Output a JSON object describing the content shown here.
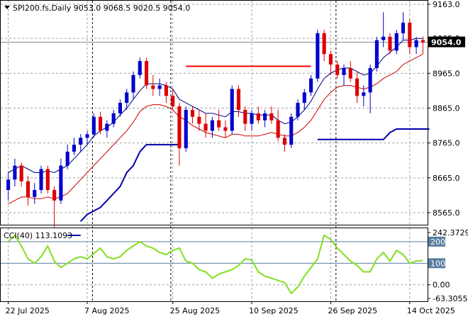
{
  "main_title": "SPI200.fs,Daily  9053.0 9068.5 9020.5 9054.0",
  "current_price_label": "9054.0",
  "cci_title": "CCI(40) 113.1093",
  "colors": {
    "up": "#0000cc",
    "down": "#dd0000",
    "ema_fast": "#000080",
    "ema_slow": "#cc0000",
    "support": "#0000aa",
    "resistance": "#ff0000",
    "cci": "#80e020",
    "grid": "#a0a0a0",
    "badge_bg": "#000000",
    "badge_text": "#ffffff"
  },
  "chart_data": [
    {
      "type": "candlestick",
      "title": "SPI200.fs,Daily  9053.0 9068.5 9020.5 9054.0",
      "ylim": [
        8500,
        9163
      ],
      "y_ticks": [
        "9163.0",
        "9065.0",
        "8965.0",
        "8865.0",
        "8765.0",
        "8665.0",
        "8565.0"
      ],
      "x_ticks": [
        "22 Jul 2025",
        "7 Aug 2025",
        "25 Aug 2025",
        "10 Sep 2025",
        "26 Sep 2025",
        "14 Oct 2025"
      ],
      "x_tick_index": [
        0,
        12,
        25,
        37,
        49,
        61
      ],
      "current_price": 9054.0,
      "candles": [
        [
          8630,
          8680,
          8600,
          8660
        ],
        [
          8660,
          8720,
          8640,
          8700
        ],
        [
          8700,
          8710,
          8640,
          8655
        ],
        [
          8655,
          8670,
          8585,
          8610
        ],
        [
          8610,
          8650,
          8590,
          8630
        ],
        [
          8630,
          8700,
          8620,
          8690
        ],
        [
          8690,
          8700,
          8620,
          8630
        ],
        [
          8630,
          8640,
          8520,
          8600
        ],
        [
          8600,
          8720,
          8590,
          8700
        ],
        [
          8700,
          8760,
          8690,
          8740
        ],
        [
          8740,
          8780,
          8730,
          8760
        ],
        [
          8760,
          8790,
          8740,
          8780
        ],
        [
          8780,
          8800,
          8760,
          8790
        ],
        [
          8790,
          8850,
          8780,
          8840
        ],
        [
          8840,
          8855,
          8790,
          8800
        ],
        [
          8800,
          8830,
          8780,
          8820
        ],
        [
          8820,
          8860,
          8810,
          8850
        ],
        [
          8850,
          8890,
          8840,
          8880
        ],
        [
          8880,
          8920,
          8860,
          8910
        ],
        [
          8910,
          8970,
          8890,
          8960
        ],
        [
          8960,
          9010,
          8950,
          9000
        ],
        [
          9000,
          9010,
          8920,
          8930
        ],
        [
          8930,
          8960,
          8900,
          8920
        ],
        [
          8920,
          8950,
          8900,
          8930
        ],
        [
          8930,
          8940,
          8880,
          8900
        ],
        [
          8900,
          8920,
          8860,
          8870
        ],
        [
          8870,
          8880,
          8700,
          8750
        ],
        [
          8750,
          8870,
          8740,
          8860
        ],
        [
          8860,
          8870,
          8820,
          8840
        ],
        [
          8840,
          8860,
          8800,
          8820
        ],
        [
          8820,
          8850,
          8780,
          8800
        ],
        [
          8800,
          8840,
          8780,
          8830
        ],
        [
          8830,
          8860,
          8800,
          8810
        ],
        [
          8810,
          8830,
          8780,
          8800
        ],
        [
          8800,
          8930,
          8790,
          8920
        ],
        [
          8920,
          8930,
          8840,
          8860
        ],
        [
          8860,
          8870,
          8800,
          8820
        ],
        [
          8820,
          8860,
          8800,
          8850
        ],
        [
          8850,
          8870,
          8820,
          8830
        ],
        [
          8830,
          8860,
          8810,
          8850
        ],
        [
          8850,
          8870,
          8820,
          8830
        ],
        [
          8830,
          8860,
          8770,
          8780
        ],
        [
          8780,
          8790,
          8740,
          8760
        ],
        [
          8760,
          8850,
          8750,
          8840
        ],
        [
          8840,
          8890,
          8830,
          8880
        ],
        [
          8880,
          8920,
          8860,
          8910
        ],
        [
          8910,
          8960,
          8900,
          8950
        ],
        [
          8950,
          9090,
          8940,
          9080
        ],
        [
          9080,
          9090,
          9000,
          9020
        ],
        [
          9020,
          9030,
          8960,
          8990
        ],
        [
          8990,
          9000,
          8950,
          8960
        ],
        [
          8960,
          8990,
          8930,
          8980
        ],
        [
          8980,
          9000,
          8940,
          8950
        ],
        [
          8950,
          8970,
          8880,
          8900
        ],
        [
          8900,
          8930,
          8870,
          8910
        ],
        [
          8910,
          8990,
          8850,
          8980
        ],
        [
          8980,
          9070,
          8970,
          9060
        ],
        [
          9060,
          9140,
          9040,
          9070
        ],
        [
          9070,
          9080,
          9020,
          9030
        ],
        [
          9030,
          9090,
          9020,
          9080
        ],
        [
          9080,
          9140,
          9060,
          9110
        ],
        [
          9110,
          9120,
          9020,
          9040
        ],
        [
          9040,
          9070,
          9020,
          9060
        ],
        [
          9060,
          9070,
          9020,
          9054
        ]
      ],
      "ema_fast": [
        8680,
        8690,
        8700,
        8690,
        8680,
        8680,
        8685,
        8680,
        8690,
        8700,
        8720,
        8740,
        8760,
        8785,
        8800,
        8810,
        8825,
        8845,
        8865,
        8890,
        8915,
        8935,
        8935,
        8935,
        8930,
        8920,
        8890,
        8880,
        8870,
        8860,
        8850,
        8850,
        8845,
        8840,
        8855,
        8855,
        8850,
        8850,
        8845,
        8845,
        8845,
        8830,
        8820,
        8825,
        8840,
        8860,
        8885,
        8920,
        8950,
        8965,
        8975,
        8980,
        8980,
        8970,
        8960,
        8965,
        8985,
        9010,
        9025,
        9040,
        9060,
        9060,
        9065,
        9065
      ],
      "ema_slow": [
        8590,
        8600,
        8610,
        8610,
        8605,
        8605,
        8610,
        8605,
        8610,
        8620,
        8640,
        8660,
        8680,
        8700,
        8720,
        8740,
        8760,
        8780,
        8800,
        8825,
        8855,
        8870,
        8875,
        8875,
        8870,
        8860,
        8840,
        8830,
        8815,
        8805,
        8795,
        8790,
        8785,
        8780,
        8790,
        8790,
        8785,
        8785,
        8785,
        8790,
        8795,
        8790,
        8785,
        8785,
        8795,
        8810,
        8830,
        8860,
        8890,
        8910,
        8925,
        8930,
        8930,
        8925,
        8920,
        8925,
        8935,
        8950,
        8960,
        8970,
        8990,
        9000,
        9010,
        9020
      ],
      "support_segments": [
        {
          "from": 9,
          "to": 11,
          "values": [
            8500,
            8500,
            8500
          ]
        },
        {
          "from": 11,
          "to": 26,
          "values": [
            8540,
            8560,
            8570,
            8580,
            8600,
            8620,
            8640,
            8680,
            8700,
            8740,
            8760,
            8760,
            8760,
            8760,
            8760,
            8760
          ]
        },
        {
          "from": 47,
          "to": 64,
          "values": [
            8775,
            8775,
            8775,
            8775,
            8775,
            8775,
            8775,
            8775,
            8775,
            8775,
            8775,
            8795,
            8805,
            8805,
            8805,
            8805,
            8805,
            8805
          ]
        }
      ],
      "resistance_segment": {
        "from": 27,
        "to": 46,
        "value": 8985
      }
    },
    {
      "type": "line",
      "title": "CCI(40) 113.1093",
      "ylim": [
        -63.3055,
        242.3729
      ],
      "y_ticks": [
        "242.3729",
        "200",
        "100",
        "0.00",
        "-63.3055"
      ],
      "levels": [
        200,
        100
      ],
      "series": [
        {
          "values": [
            200,
            230,
            180,
            120,
            100,
            130,
            180,
            110,
            80,
            100,
            120,
            130,
            120,
            145,
            170,
            130,
            120,
            130,
            160,
            180,
            200,
            180,
            170,
            150,
            140,
            160,
            170,
            110,
            100,
            70,
            60,
            30,
            50,
            60,
            70,
            90,
            120,
            115,
            60,
            40,
            30,
            20,
            10,
            -40,
            -10,
            40,
            80,
            120,
            230,
            210,
            170,
            140,
            110,
            90,
            60,
            60,
            120,
            150,
            110,
            160,
            140,
            100,
            110,
            113
          ]
        }
      ]
    }
  ]
}
